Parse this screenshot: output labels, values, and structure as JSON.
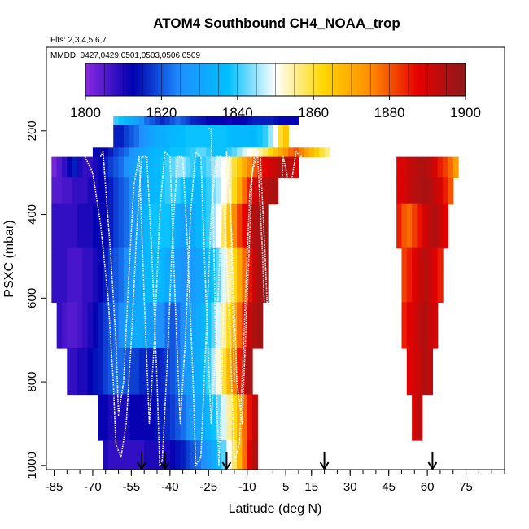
{
  "chart_data": {
    "type": "heatmap",
    "title": "ATOM4 Southbound CH4_NOAA_trop",
    "flights_note": "Flts: 2,3,4,5,6,7",
    "dates_note": "MMDD: 0427,0429,0501,0503,0506,0509",
    "xlabel": "Latitude (deg N)",
    "ylabel": "PSXC (mbar)",
    "xlim": [
      -88,
      90
    ],
    "ylim": [
      1010,
      0
    ],
    "x_ticks": [
      -85,
      -70,
      -55,
      -40,
      -25,
      -10,
      5,
      15,
      30,
      45,
      60,
      75
    ],
    "x_tick_labels": [
      "-85",
      "-70",
      "-55",
      "-40",
      "-25",
      "-10",
      "5",
      "15",
      "30",
      "45",
      "60",
      "75"
    ],
    "x_minor_step": 5,
    "y_ticks": [
      200,
      400,
      600,
      800,
      1000
    ],
    "y_tick_labels": [
      "200",
      "400",
      "600",
      "800",
      "1000"
    ],
    "colorbar": {
      "min": 1800,
      "max": 1900,
      "ticks": [
        1800,
        1820,
        1840,
        1860,
        1880,
        1900
      ],
      "tick_labels": [
        "1800",
        "1820",
        "1840",
        "1860",
        "1880",
        "1900"
      ],
      "color_stops": [
        "#8a2be2",
        "#0000b0",
        "#1e90ff",
        "#00bfff",
        "#ffffff",
        "#ffd700",
        "#ff8c00",
        "#e60000",
        "#8b1a1a"
      ]
    },
    "profile_markers_lat": [
      -51,
      -42,
      -18,
      20,
      62
    ],
    "series": [
      {
        "name": "band-175",
        "p_top": 165,
        "p_bottom": 185,
        "lat_start": -61,
        "lat_step": 2,
        "values": [
          1840,
          1838,
          1835,
          1833,
          1830,
          1826,
          1822,
          1820,
          1818,
          1816,
          1818,
          1820,
          1822,
          1820,
          1818,
          1816,
          1815,
          1814,
          1813,
          1812,
          1812,
          1812,
          1811,
          1812,
          1812,
          1813,
          1814,
          1815,
          1815,
          1815,
          1815,
          1814,
          1813,
          1812,
          1812,
          1812
        ]
      },
      {
        "name": "band-210",
        "p_top": 185,
        "p_bottom": 240,
        "lat_start": -61,
        "lat_step": 2,
        "values": [
          1815,
          1815,
          1818,
          1820,
          1822,
          1825,
          1828,
          1830,
          1832,
          1833,
          1834,
          1835,
          1836,
          1837,
          1838,
          1838,
          1838,
          1838,
          1838,
          1838,
          1838,
          1838,
          1837,
          1836,
          1836,
          1836,
          1836,
          1836,
          1838,
          1840,
          1845,
          1850,
          1860,
          1865
        ]
      },
      {
        "name": "band-250",
        "p_top": 240,
        "p_bottom": 262,
        "lat_start": -69,
        "lat_step": 2,
        "values": [
          1812,
          1812,
          1812,
          1815,
          1818,
          1820,
          1822,
          1825,
          1828,
          1830,
          1832,
          1834,
          1835,
          1836,
          1837,
          1838,
          1838,
          1838,
          1839,
          1840,
          1842,
          1842,
          1840,
          1838,
          1838,
          1838,
          1840,
          1842,
          1845,
          1848,
          1850,
          1852,
          1855,
          1858,
          1862,
          1866,
          1870,
          1874,
          1878,
          1880,
          1876,
          1872,
          1868,
          1864,
          1860,
          1856
        ]
      },
      {
        "name": "band-290",
        "p_top": 262,
        "p_bottom": 312,
        "lat_start": -85,
        "lat_step": 2,
        "values": [
          1802,
          1805,
          1808,
          1812,
          1815,
          1810,
          1808,
          1808,
          1810,
          1812,
          1815,
          1818,
          1820,
          1822,
          1825,
          1828,
          1830,
          1832,
          1834,
          1835,
          1836,
          1838,
          1840,
          1842,
          1845,
          1845,
          1842,
          1840,
          1838,
          1840,
          1842,
          1845,
          1848,
          1850,
          1855,
          1860,
          1865,
          1870,
          1875,
          1880,
          1885,
          1888,
          1890,
          1892,
          1895,
          1895,
          1893,
          1890
        ]
      },
      {
        "name": "band-290-nh",
        "p_top": 262,
        "p_bottom": 312,
        "lat_start": 49,
        "lat_step": 2,
        "values": [
          1888,
          1890,
          1892,
          1893,
          1895,
          1895,
          1893,
          1890,
          1885,
          1882,
          1878,
          1872
        ]
      },
      {
        "name": "band-350",
        "p_top": 312,
        "p_bottom": 375,
        "lat_start": -85,
        "lat_step": 2,
        "values": [
          1805,
          1805,
          1806,
          1806,
          1808,
          1808,
          1808,
          1810,
          1810,
          1812,
          1812,
          1815,
          1818,
          1820,
          1822,
          1825,
          1828,
          1830,
          1832,
          1835,
          1836,
          1838,
          1840,
          1840,
          1840,
          1838,
          1836,
          1835,
          1835,
          1838,
          1840,
          1843,
          1846,
          1850,
          1855,
          1862,
          1870,
          1878,
          1885,
          1890,
          1892,
          1894,
          1895,
          1896
        ]
      },
      {
        "name": "band-350-nh",
        "p_top": 312,
        "p_bottom": 375,
        "lat_start": 49,
        "lat_step": 2,
        "values": [
          1888,
          1890,
          1892,
          1894,
          1895,
          1896,
          1895,
          1892,
          1890,
          1885,
          1880
        ]
      },
      {
        "name": "band-430",
        "p_top": 375,
        "p_bottom": 480,
        "lat_start": -85,
        "lat_step": 2,
        "values": [
          1808,
          1808,
          1808,
          1808,
          1808,
          1810,
          1810,
          1810,
          1812,
          1812,
          1812,
          1815,
          1818,
          1820,
          1822,
          1825,
          1828,
          1832,
          1835,
          1838,
          1838,
          1838,
          1838,
          1835,
          1832,
          1830,
          1830,
          1832,
          1835,
          1838,
          1840,
          1845,
          1850,
          1858,
          1866,
          1875,
          1882,
          1888,
          1892,
          1895,
          1896,
          1897
        ]
      },
      {
        "name": "band-430-nh",
        "p_top": 375,
        "p_bottom": 480,
        "lat_start": 49,
        "lat_step": 2,
        "values": [
          1885,
          1880,
          1878,
          1882,
          1886,
          1890,
          1893,
          1895,
          1892,
          1888
        ]
      },
      {
        "name": "band-545",
        "p_top": 480,
        "p_bottom": 610,
        "lat_start": -85,
        "lat_step": 2,
        "values": [
          1808,
          1808,
          1808,
          1806,
          1806,
          1806,
          1808,
          1808,
          1810,
          1812,
          1815,
          1818,
          1820,
          1822,
          1825,
          1828,
          1830,
          1832,
          1835,
          1836,
          1836,
          1835,
          1832,
          1830,
          1828,
          1826,
          1825,
          1828,
          1830,
          1832,
          1835,
          1838,
          1842,
          1848,
          1855,
          1862,
          1870,
          1878,
          1886,
          1892,
          1896,
          1897
        ]
      },
      {
        "name": "band-545-nh",
        "p_top": 480,
        "p_bottom": 610,
        "lat_start": 51,
        "lat_step": 2,
        "values": [
          1882,
          1885,
          1888,
          1892,
          1894,
          1892,
          1888,
          1885
        ]
      },
      {
        "name": "band-660",
        "p_top": 610,
        "p_bottom": 720,
        "lat_start": -83,
        "lat_step": 2,
        "values": [
          1808,
          1806,
          1805,
          1805,
          1806,
          1808,
          1810,
          1812,
          1815,
          1818,
          1820,
          1822,
          1825,
          1828,
          1830,
          1832,
          1832,
          1830,
          1828,
          1826,
          1825,
          1822,
          1820,
          1822,
          1825,
          1828,
          1830,
          1832,
          1835,
          1838,
          1842,
          1848,
          1855,
          1862,
          1870,
          1878,
          1886,
          1892,
          1895,
          1897
        ]
      },
      {
        "name": "band-660-nh",
        "p_top": 610,
        "p_bottom": 720,
        "lat_start": 51,
        "lat_step": 2,
        "values": [
          1885,
          1888,
          1890,
          1893,
          1895,
          1892,
          1890
        ]
      },
      {
        "name": "band-775",
        "p_top": 720,
        "p_bottom": 830,
        "lat_start": -79,
        "lat_step": 2,
        "values": [
          1808,
          1808,
          1810,
          1810,
          1812,
          1814,
          1815,
          1818,
          1820,
          1822,
          1822,
          1820,
          1818,
          1818,
          1816,
          1816,
          1815,
          1815,
          1816,
          1818,
          1820,
          1822,
          1825,
          1828,
          1830,
          1833,
          1836,
          1840,
          1846,
          1852,
          1860,
          1868,
          1876,
          1885,
          1892,
          1896
        ]
      },
      {
        "name": "band-775-nh",
        "p_top": 720,
        "p_bottom": 830,
        "lat_start": 53,
        "lat_step": 2,
        "values": [
          1888,
          1890,
          1892,
          1895,
          1893
        ]
      },
      {
        "name": "band-890",
        "p_top": 830,
        "p_bottom": 940,
        "lat_start": -67,
        "lat_step": 2,
        "values": [
          1812,
          1812,
          1810,
          1810,
          1810,
          1810,
          1812,
          1812,
          1812,
          1812,
          1812,
          1814,
          1815,
          1816,
          1818,
          1820,
          1822,
          1825,
          1828,
          1830,
          1832,
          1835,
          1838,
          1842,
          1848,
          1855,
          1862,
          1870,
          1878,
          1886,
          1892
        ]
      },
      {
        "name": "band-890-nh",
        "p_top": 830,
        "p_bottom": 940,
        "lat_start": 55,
        "lat_step": 2,
        "values": [
          1890,
          1894
        ]
      },
      {
        "name": "band-975",
        "p_top": 940,
        "p_bottom": 1010,
        "lat_start": -65,
        "lat_step": 2,
        "values": [
          1810,
          1808,
          1808,
          1808,
          1808,
          1808,
          1808,
          1808,
          1810,
          1810,
          1810,
          1810,
          1810,
          1812,
          1814,
          1815,
          1818,
          1820,
          1822,
          1825,
          1828,
          1832,
          1836,
          1842,
          1850,
          1858,
          1868,
          1878,
          1888,
          1894
        ]
      }
    ],
    "flight_tracks": [
      [
        [
          -73,
          262
        ],
        [
          -70,
          300
        ],
        [
          -67,
          420
        ],
        [
          -64,
          600
        ],
        [
          -62,
          800
        ],
        [
          -61,
          950
        ],
        [
          -59,
          980
        ],
        [
          -57,
          900
        ],
        [
          -55,
          700
        ],
        [
          -53,
          450
        ],
        [
          -51,
          262
        ],
        [
          -49,
          262
        ],
        [
          -47,
          500
        ],
        [
          -45,
          800
        ],
        [
          -44,
          1000
        ],
        [
          -43,
          990
        ],
        [
          -41,
          750
        ],
        [
          -39,
          450
        ],
        [
          -37,
          262
        ],
        [
          -35,
          262
        ],
        [
          -33,
          500
        ],
        [
          -31,
          800
        ],
        [
          -30,
          1000
        ],
        [
          -28,
          980
        ],
        [
          -26,
          700
        ],
        [
          -24,
          400
        ],
        [
          -22,
          262
        ],
        [
          -20,
          262
        ],
        [
          -18,
          500
        ],
        [
          -16,
          800
        ],
        [
          -15,
          990
        ],
        [
          -13,
          950
        ],
        [
          -11,
          650
        ],
        [
          -9,
          350
        ],
        [
          -7,
          250
        ],
        [
          -5,
          250
        ],
        [
          -3,
          500
        ],
        [
          -1,
          800
        ],
        [
          1,
          1000
        ],
        [
          3,
          950
        ],
        [
          5,
          650
        ],
        [
          7,
          330
        ],
        [
          9,
          250
        ],
        [
          11,
          262
        ],
        [
          13,
          450
        ],
        [
          15,
          650
        ]
      ],
      [
        [
          -67,
          262
        ],
        [
          -66,
          250
        ],
        [
          -63,
          500
        ],
        [
          -61,
          700
        ],
        [
          -60,
          880
        ],
        [
          -58,
          800
        ],
        [
          -56,
          550
        ],
        [
          -54,
          330
        ],
        [
          -52,
          262
        ],
        [
          -50,
          600
        ],
        [
          -48,
          900
        ],
        [
          -46,
          700
        ],
        [
          -44,
          400
        ],
        [
          -42,
          250
        ],
        [
          -40,
          262
        ],
        [
          -38,
          600
        ],
        [
          -36,
          900
        ],
        [
          -34,
          700
        ],
        [
          -32,
          400
        ],
        [
          -30,
          250
        ],
        [
          -28,
          262
        ],
        [
          -26,
          600
        ],
        [
          -24,
          900
        ],
        [
          -22,
          700
        ],
        [
          -20,
          400
        ],
        [
          -18,
          250
        ],
        [
          -16,
          450
        ],
        [
          -14,
          800
        ],
        [
          -12,
          900
        ],
        [
          -10,
          600
        ],
        [
          -8,
          300
        ],
        [
          -6,
          250
        ],
        [
          -4,
          500
        ],
        [
          -2,
          850
        ],
        [
          0,
          800
        ],
        [
          2,
          500
        ],
        [
          4,
          262
        ],
        [
          6,
          320
        ],
        [
          8,
          600
        ],
        [
          10,
          880
        ],
        [
          12,
          600
        ],
        [
          14,
          320
        ],
        [
          16,
          262
        ]
      ],
      [
        [
          -25,
          195
        ],
        [
          -24,
          195
        ],
        [
          -23,
          450
        ],
        [
          -22,
          800
        ],
        [
          -21,
          1000
        ],
        [
          -20,
          850
        ],
        [
          -19,
          550
        ],
        [
          -18,
          330
        ],
        [
          -17,
          262
        ],
        [
          -16,
          500
        ],
        [
          -15,
          800
        ]
      ],
      [
        [
          16,
          280
        ],
        [
          17,
          300
        ],
        [
          18,
          500
        ],
        [
          19,
          700
        ],
        [
          20,
          950
        ],
        [
          21,
          800
        ],
        [
          22,
          550
        ]
      ]
    ],
    "gridlines": false
  }
}
